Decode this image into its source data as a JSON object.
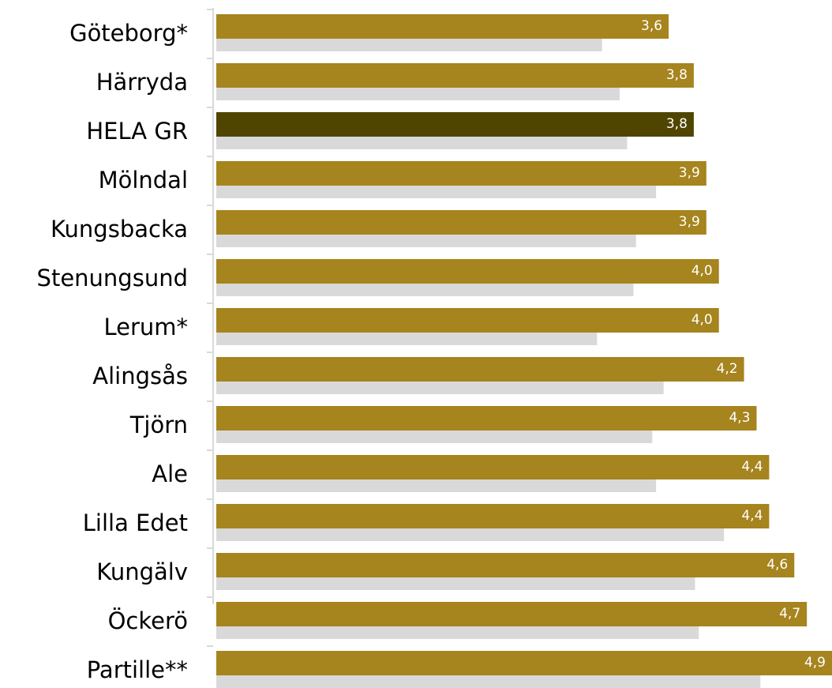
{
  "chart_data": {
    "type": "bar",
    "orientation": "horizontal",
    "categories": [
      "Göteborg*",
      "Härryda",
      "HELA GR",
      "Mölndal",
      "Kungsbacka",
      "Stenungsund",
      "Lerum*",
      "Alingsås",
      "Tjörn",
      "Ale",
      "Lilla Edet",
      "Kungälv",
      "Öckerö",
      "Partille**"
    ],
    "series": [
      {
        "color": "#a6841e",
        "colors": [
          "#a6841e",
          "#a6841e",
          "#4f4500",
          "#a6841e",
          "#a6841e",
          "#a6841e",
          "#a6841e",
          "#a6841e",
          "#a6841e",
          "#a6841e",
          "#a6841e",
          "#a6841e",
          "#a6841e",
          "#a6841e"
        ],
        "values": [
          3.6,
          3.8,
          3.8,
          3.9,
          3.9,
          4.0,
          4.0,
          4.2,
          4.3,
          4.4,
          4.4,
          4.6,
          4.7,
          4.9
        ],
        "value_labels": [
          "3,6",
          "3,8",
          "3,8",
          "3,9",
          "3,9",
          "4,0",
          "4,0",
          "4,2",
          "4,3",
          "4,4",
          "4,4",
          "4,6",
          "4,7",
          "4,9"
        ]
      },
      {
        "color": "#d9d9d9",
        "values": [
          3.07,
          3.21,
          3.27,
          3.5,
          3.34,
          3.32,
          3.03,
          3.56,
          3.47,
          3.5,
          4.04,
          3.81,
          3.84,
          4.33
        ]
      }
    ],
    "xlim": [
      0,
      4.9
    ]
  }
}
